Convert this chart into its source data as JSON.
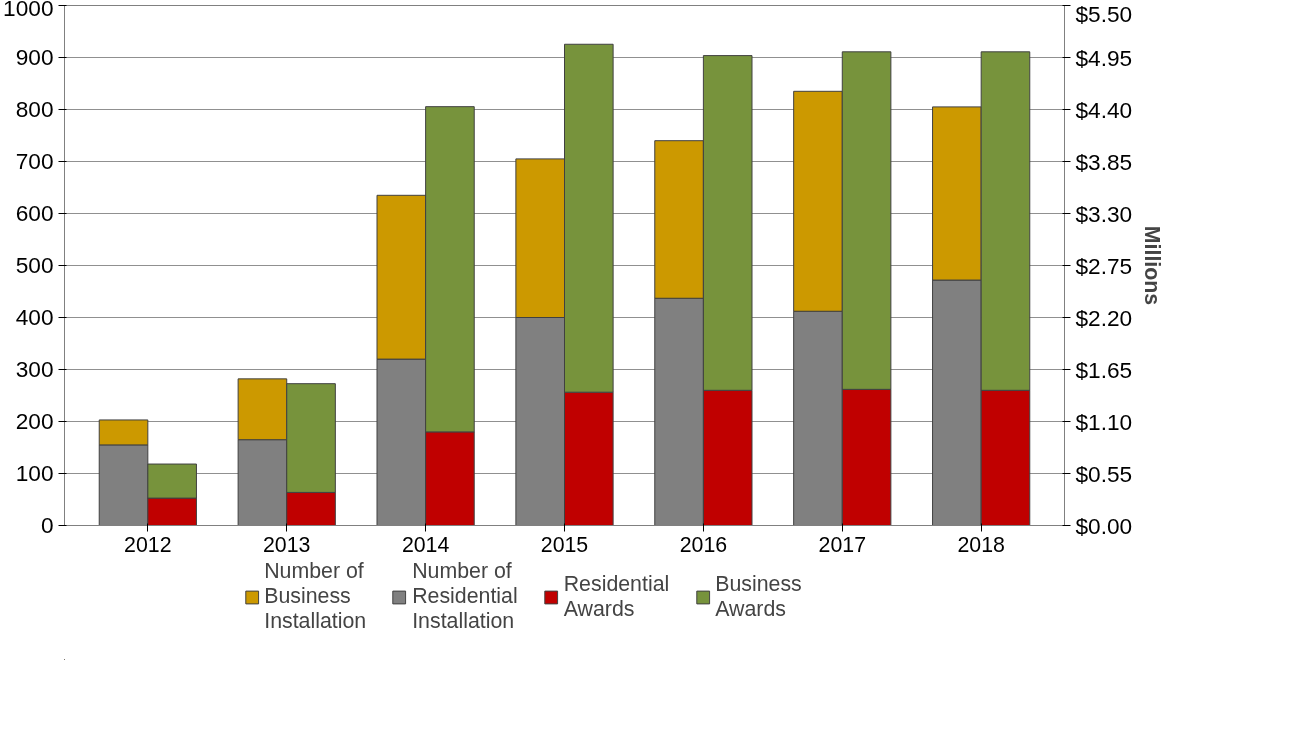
{
  "chart_data": {
    "type": "bar",
    "stacked": true,
    "categories": [
      "2012",
      "2013",
      "2014",
      "2015",
      "2016",
      "2017",
      "2018"
    ],
    "series": [
      {
        "name": "Number of Residential Installation",
        "color": "#808080",
        "values": [
          155,
          165,
          320,
          400,
          437,
          412,
          472
        ]
      },
      {
        "name": "Number of Business Installation",
        "color": "#cc9900",
        "values": [
          48,
          117,
          315,
          305,
          303,
          423,
          333
        ]
      },
      {
        "name": "Residential Awards",
        "color": "#c00000",
        "axis": "y2",
        "values": [
          0.29,
          0.35,
          0.99,
          1.41,
          1.43,
          1.44,
          1.43
        ]
      },
      {
        "name": "Business Awards",
        "color": "#77933c",
        "axis": "y2",
        "values": [
          0.36,
          1.15,
          3.44,
          3.68,
          3.54,
          3.57,
          3.58
        ]
      }
    ],
    "ylim": [
      0,
      1000
    ],
    "yticks": [
      0,
      100,
      200,
      300,
      400,
      500,
      600,
      700,
      800,
      900,
      1000
    ],
    "y2lim": [
      0,
      5.5
    ],
    "y2ticks": [
      {
        "value": 0,
        "label": "$0.00"
      },
      {
        "value": 0.55,
        "label": "$0.55"
      },
      {
        "value": 1.1,
        "label": "$1.10"
      },
      {
        "value": 1.65,
        "label": "$1.65"
      },
      {
        "value": 2.2,
        "label": "$2.20"
      },
      {
        "value": 2.75,
        "label": "$2.75"
      },
      {
        "value": 3.3,
        "label": "$3.30"
      },
      {
        "value": 3.85,
        "label": "$3.85"
      },
      {
        "value": 4.4,
        "label": "$4.40"
      },
      {
        "value": 4.95,
        "label": "$4.95"
      },
      {
        "value": 5.5,
        "label": "$5.50"
      }
    ],
    "y2label": "Millions",
    "grid": "y",
    "legend": "bottom"
  }
}
